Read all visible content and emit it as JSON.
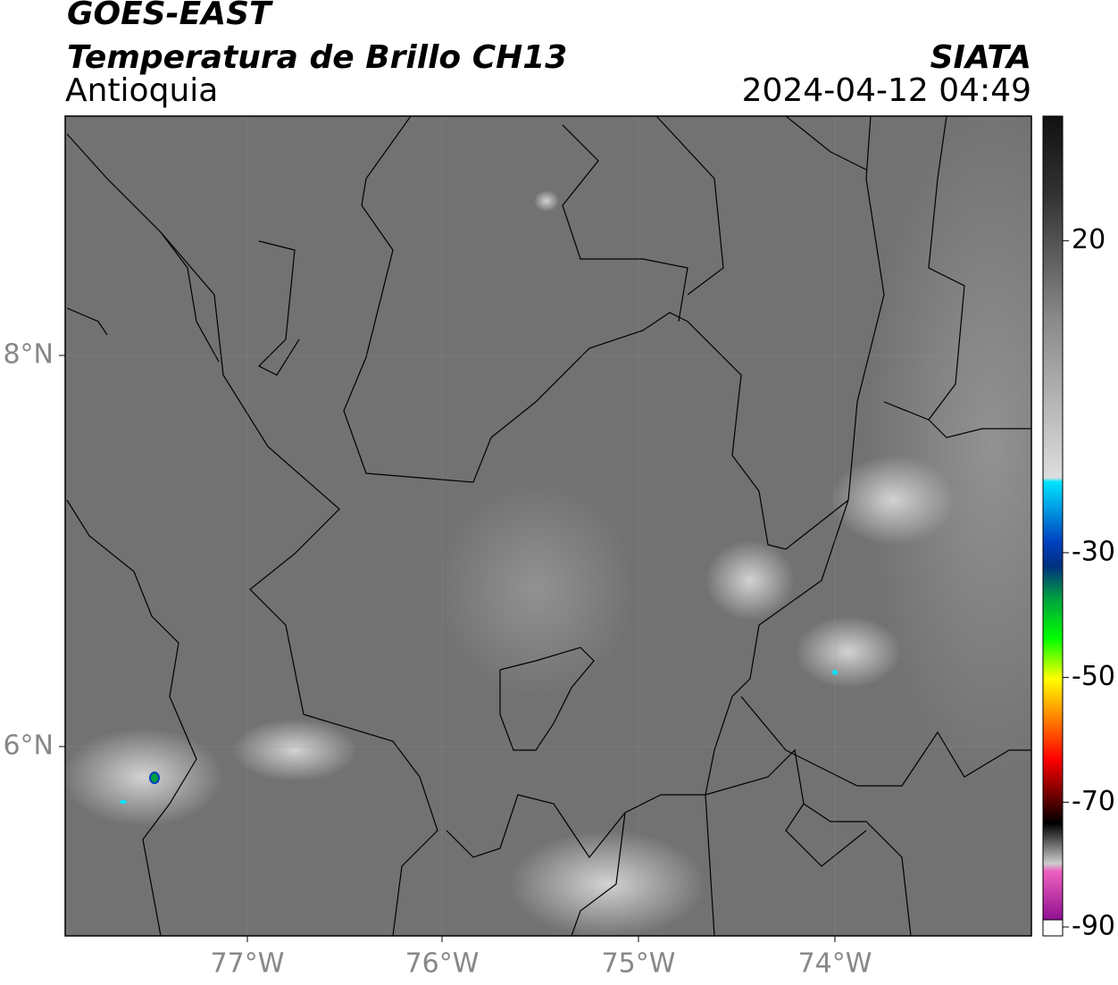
{
  "title": "GOES-EAST",
  "subtitle": "Temperatura de Brillo CH13",
  "region": "Antioquia",
  "source": "SIATA",
  "timestamp": "2024-04-12 04:49",
  "map": {
    "lat_labels": [
      "8°N",
      "6°N"
    ],
    "lon_labels": [
      "77°W",
      "76°W",
      "75°W",
      "74°W"
    ]
  },
  "colorbar": {
    "vlim": [
      -90,
      40
    ],
    "ticks": [
      20,
      -30,
      -50,
      -70,
      -90
    ]
  }
}
